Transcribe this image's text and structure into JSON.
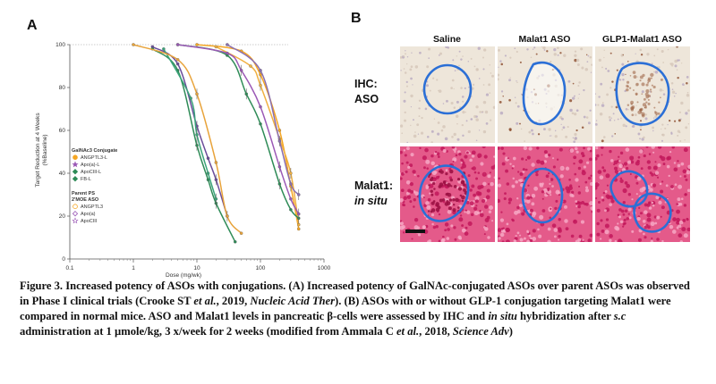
{
  "panel_a_label": "A",
  "panel_b_label": "B",
  "chart_data": {
    "type": "line",
    "xscale": "log",
    "xlabel": "Dose (mg/wk)",
    "ylabel_line1": "Target Reduction at 4 Weeks",
    "ylabel_line2": "(%Baseline)",
    "xlim": [
      0.1,
      1000
    ],
    "ylim": [
      0,
      100
    ],
    "xticks": [
      "0.1",
      "1",
      "10",
      "100",
      "1000"
    ],
    "yticks": [
      "0",
      "20",
      "40",
      "60",
      "80",
      "100"
    ],
    "legend": {
      "group1_title": "GalNAc3 Conjugate",
      "group1": [
        {
          "name": "ANGPTL3-L",
          "color": "#f5a623",
          "marker": "circle"
        },
        {
          "name": "Apo(a)-L",
          "color": "#9b59b6",
          "marker": "star"
        },
        {
          "name": "ApoCIII-L",
          "color": "#2e8b57",
          "marker": "diamond"
        },
        {
          "name": "FB-L",
          "color": "#2e8b57",
          "marker": "diamond"
        }
      ],
      "group2_title_line1": "Parent PS",
      "group2_title_line2": "2'MOE ASO",
      "group2": [
        {
          "name": "ANGPTL3",
          "color": "#f5a623",
          "marker": "circle-open"
        },
        {
          "name": "Apo(a)",
          "color": "#9b59b6",
          "marker": "diamond-open"
        },
        {
          "name": "ApoCIII",
          "color": "#9b59b6",
          "marker": "star-open"
        }
      ]
    },
    "series": [
      {
        "color": "#6b4c9a",
        "x": [
          2,
          5,
          10,
          15,
          20,
          30
        ],
        "y": [
          99,
          91,
          62,
          47,
          37,
          20
        ]
      },
      {
        "color": "#2e8b57",
        "x": [
          2,
          5,
          10,
          15,
          20,
          40
        ],
        "y": [
          98,
          88,
          53,
          37,
          26,
          8
        ]
      },
      {
        "color": "#3aa37a",
        "x": [
          3,
          8,
          10,
          15,
          20
        ],
        "y": [
          98,
          75,
          58,
          40,
          28
        ]
      },
      {
        "color": "#e8a33a",
        "x": [
          1,
          5,
          10,
          20,
          30,
          50
        ],
        "y": [
          100,
          93,
          77,
          45,
          20,
          12
        ]
      },
      {
        "color": "#f5a623",
        "x": [
          10,
          50,
          100,
          200,
          300,
          400
        ],
        "y": [
          100,
          97,
          86,
          60,
          34,
          14
        ]
      },
      {
        "color": "#f0b040",
        "x": [
          20,
          70,
          100,
          200,
          300,
          400
        ],
        "y": [
          99,
          90,
          81,
          56,
          40,
          16
        ]
      },
      {
        "color": "#2e8b57",
        "x": [
          5,
          30,
          60,
          100,
          200,
          300,
          400
        ],
        "y": [
          100,
          95,
          77,
          63,
          35,
          23,
          19
        ]
      },
      {
        "color": "#9b59b6",
        "x": [
          5,
          30,
          50,
          100,
          200,
          300,
          400
        ],
        "y": [
          100,
          96,
          88,
          71,
          43,
          28,
          21
        ]
      },
      {
        "color": "#8a6fb0",
        "x": [
          30,
          100,
          200,
          300,
          400
        ],
        "y": [
          100,
          88,
          55,
          35,
          30
        ]
      }
    ]
  },
  "panel_b": {
    "columns": [
      "Saline",
      "Malat1 ASO",
      "GLP1-Malat1 ASO"
    ],
    "row1_label_line1": "IHC:",
    "row1_label_line2": "ASO",
    "row2_label_line1": "Malat1:",
    "row2_label_line2": "in situ",
    "outline_color": "#2b6fd6",
    "ihc_background": "#eee6da",
    "insitu_background": "#e45a8a"
  },
  "caption": {
    "fig_label": "Figure 3.",
    "part1": " Increased potency of ASOs with conjugations. (A) Increased potency of GalNAc-conjugated ASOs over parent ASOs was observed in Phase I clinical trials (Crooke ST ",
    "etal1": "et al.",
    "part2": ", 2019, ",
    "journal1": "Nucleic Acid Ther",
    "part3": "). (B) ASOs with or without GLP-1 conjugation targeting Malat1 were compared in normal mice. ASO and Malat1 levels in pancreatic β-cells were assessed by IHC and ",
    "insitu": "in situ",
    "part4": " hybridization after ",
    "sc": "s.c",
    "part5": " administration at 1 µmole/kg, 3 x/week for 2 weeks (modified from Ammala C ",
    "etal2": "et al.",
    "part6": ", 2018, ",
    "journal2": "Science Adv",
    "part7": ")"
  }
}
